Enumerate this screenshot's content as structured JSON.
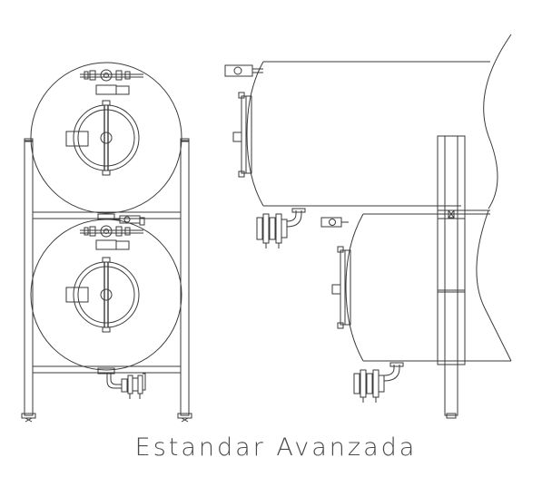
{
  "caption": "Estandar Avanzada",
  "colors": {
    "line": "#3a3a3a",
    "background": "#ffffff"
  },
  "views": [
    {
      "name": "front-view",
      "tanks": 2
    },
    {
      "name": "side-view",
      "tanks": 2
    }
  ]
}
